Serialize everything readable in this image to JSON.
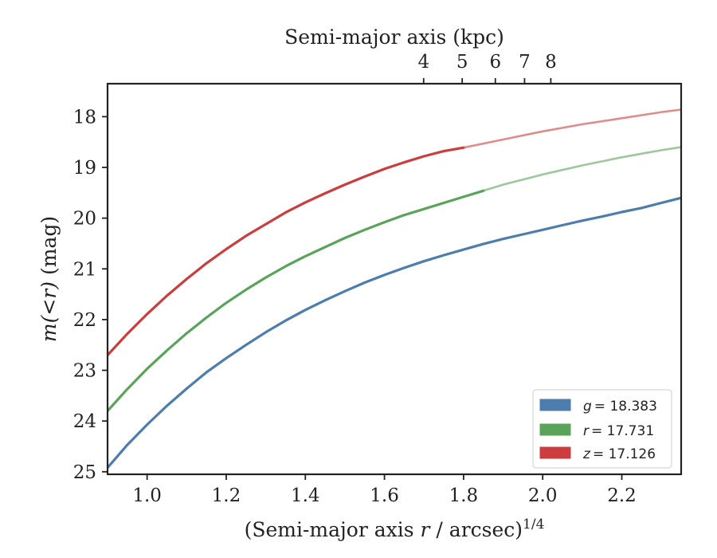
{
  "chart_data": {
    "type": "line",
    "xlabel": "(Semi-major axis r / arcsec)^1/4",
    "xlabel_parts": {
      "pre": "(Semi-major axis ",
      "var": "r",
      "post": " / arcsec)",
      "sup": "1/4"
    },
    "ylabel": "m(<r) (mag)",
    "ylabel_parts": {
      "math": "m(<r)",
      "unit": " (mag)"
    },
    "top_xlabel": "Semi-major axis (kpc)",
    "xlim": [
      0.9,
      2.35
    ],
    "ylim": [
      25.05,
      17.35
    ],
    "y_inverted": true,
    "xticks": [
      1.0,
      1.2,
      1.4,
      1.6,
      1.8,
      2.0,
      2.2
    ],
    "xtick_labels": [
      "1.0",
      "1.2",
      "1.4",
      "1.6",
      "1.8",
      "2.0",
      "2.2"
    ],
    "yticks": [
      18,
      19,
      20,
      21,
      22,
      23,
      24,
      25
    ],
    "ytick_labels": [
      "18",
      "19",
      "20",
      "21",
      "22",
      "23",
      "24",
      "25"
    ],
    "top_xticks_kpc": [
      4,
      5,
      6,
      7,
      8
    ],
    "top_xtick_labels": [
      "4",
      "5",
      "6",
      "7",
      "8"
    ],
    "top_axis_kpc_per_arcsec": 0.48,
    "grid": false,
    "legend_position": "bottom-right",
    "series": [
      {
        "name": "g = 18.383",
        "band": "g",
        "value_text": "= 18.383",
        "color": "#4c7dad",
        "total_mag": 18.383,
        "solid_until_x": 2.35,
        "x": [
          0.9,
          0.95,
          1.0,
          1.05,
          1.1,
          1.15,
          1.2,
          1.25,
          1.3,
          1.35,
          1.4,
          1.45,
          1.5,
          1.55,
          1.6,
          1.65,
          1.7,
          1.75,
          1.8,
          1.85,
          1.9,
          1.95,
          2.0,
          2.05,
          2.1,
          2.15,
          2.2,
          2.25,
          2.3,
          2.35
        ],
        "y": [
          24.92,
          24.47,
          24.07,
          23.7,
          23.36,
          23.04,
          22.76,
          22.5,
          22.25,
          22.02,
          21.81,
          21.62,
          21.44,
          21.27,
          21.12,
          20.98,
          20.85,
          20.73,
          20.62,
          20.51,
          20.41,
          20.32,
          20.23,
          20.14,
          20.05,
          19.97,
          19.88,
          19.8,
          19.7,
          19.6
        ]
      },
      {
        "name": "r = 17.731",
        "band": "r",
        "value_text": "= 17.731",
        "color": "#5aa35a",
        "total_mag": 17.731,
        "solid_until_x": 1.89,
        "x": [
          0.9,
          0.95,
          1.0,
          1.05,
          1.1,
          1.15,
          1.2,
          1.25,
          1.3,
          1.35,
          1.4,
          1.45,
          1.5,
          1.55,
          1.6,
          1.65,
          1.7,
          1.75,
          1.8,
          1.85,
          1.9,
          1.95,
          2.0,
          2.05,
          2.1,
          2.15,
          2.2,
          2.25,
          2.3,
          2.35
        ],
        "y": [
          23.8,
          23.37,
          22.97,
          22.61,
          22.27,
          21.96,
          21.67,
          21.41,
          21.17,
          20.95,
          20.75,
          20.57,
          20.39,
          20.23,
          20.08,
          19.94,
          19.82,
          19.7,
          19.58,
          19.46,
          19.34,
          19.24,
          19.14,
          19.05,
          18.96,
          18.88,
          18.8,
          18.73,
          18.66,
          18.6
        ]
      },
      {
        "name": "z = 17.126",
        "band": "z",
        "value_text": "= 17.126",
        "color": "#cc3d3d",
        "total_mag": 17.126,
        "solid_until_x": 1.8,
        "x": [
          0.9,
          0.95,
          1.0,
          1.05,
          1.1,
          1.15,
          1.2,
          1.25,
          1.3,
          1.35,
          1.4,
          1.45,
          1.5,
          1.55,
          1.6,
          1.65,
          1.7,
          1.75,
          1.8,
          1.85,
          1.9,
          1.95,
          2.0,
          2.05,
          2.1,
          2.15,
          2.2,
          2.25,
          2.3,
          2.35
        ],
        "y": [
          22.7,
          22.28,
          21.89,
          21.53,
          21.2,
          20.89,
          20.61,
          20.35,
          20.12,
          19.89,
          19.69,
          19.51,
          19.34,
          19.18,
          19.03,
          18.9,
          18.78,
          18.68,
          18.61,
          18.53,
          18.45,
          18.37,
          18.29,
          18.22,
          18.15,
          18.09,
          18.03,
          17.97,
          17.91,
          17.86
        ]
      }
    ]
  }
}
